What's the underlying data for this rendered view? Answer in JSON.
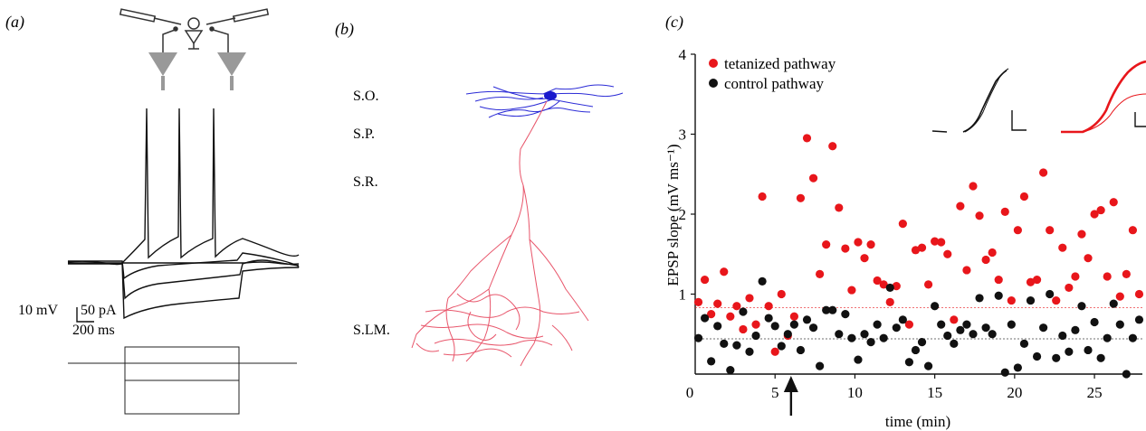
{
  "panel_labels": {
    "a": "(a)",
    "b": "(b)",
    "c": "(c)"
  },
  "panel_a": {
    "scale_voltage": "10 mV",
    "scale_current": "50 pA",
    "scale_time": "200 ms"
  },
  "panel_b": {
    "layers": [
      "S.O.",
      "S.P.",
      "S.R.",
      "S.LM."
    ],
    "colors": {
      "axon_basal": "#2b2bd6",
      "dendrite": "#e8566b"
    }
  },
  "chart_data": {
    "type": "scatter",
    "xlabel": "time (min)",
    "ylabel": "EPSP slope (mV ms⁻¹)",
    "xlim": [
      0,
      28
    ],
    "ylim": [
      0,
      4
    ],
    "xticks": [
      0,
      5,
      10,
      15,
      20,
      25
    ],
    "yticks": [
      1,
      2,
      3,
      4
    ],
    "legend_position": "top-left",
    "stimulus_arrow_time": 6,
    "baseline_lines": [
      {
        "series": "tetanized pathway",
        "y": 0.83,
        "style": "dotted"
      },
      {
        "series": "control pathway",
        "y": 0.44,
        "style": "dotted"
      }
    ],
    "series": [
      {
        "name": "tetanized pathway",
        "color": "#e8161b",
        "x": [
          0.2,
          0.6,
          1.0,
          1.4,
          1.8,
          2.2,
          2.6,
          3.0,
          3.4,
          3.8,
          4.2,
          4.6,
          5.0,
          5.4,
          5.8,
          6.2,
          6.6,
          7.0,
          7.4,
          7.8,
          8.2,
          8.6,
          9.0,
          9.4,
          9.8,
          10.2,
          10.6,
          11.0,
          11.4,
          11.8,
          12.2,
          12.6,
          13.0,
          13.4,
          13.8,
          14.2,
          14.6,
          15.0,
          15.4,
          15.8,
          16.2,
          16.6,
          17.0,
          17.4,
          17.8,
          18.2,
          18.6,
          19.0,
          19.4,
          19.8,
          20.2,
          20.6,
          21.0,
          21.4,
          21.8,
          22.2,
          22.6,
          23.0,
          23.4,
          23.8,
          24.2,
          24.6,
          25.0,
          25.4,
          25.8,
          26.2,
          26.6,
          27.0,
          27.4,
          27.8
        ],
        "y": [
          0.9,
          1.18,
          0.75,
          0.88,
          1.28,
          0.72,
          0.85,
          0.56,
          0.95,
          0.62,
          2.22,
          0.85,
          0.28,
          1.0,
          0.48,
          0.72,
          2.2,
          2.95,
          2.45,
          1.25,
          1.62,
          2.85,
          2.08,
          1.57,
          1.05,
          1.65,
          1.45,
          1.62,
          1.17,
          1.12,
          0.9,
          1.1,
          1.88,
          0.62,
          1.55,
          1.58,
          1.12,
          1.66,
          1.65,
          1.5,
          0.68,
          2.1,
          1.3,
          2.35,
          1.98,
          1.43,
          1.52,
          1.18,
          2.03,
          0.92,
          1.8,
          2.22,
          1.15,
          1.18,
          2.52,
          1.8,
          0.92,
          1.58,
          1.08,
          1.22,
          1.75,
          1.45,
          2.0,
          2.05,
          1.22,
          2.15,
          0.97,
          1.25,
          1.8,
          1.0
        ]
      },
      {
        "name": "control pathway",
        "color": "#111111",
        "x": [
          0.2,
          0.6,
          1.0,
          1.4,
          1.8,
          2.2,
          2.6,
          3.0,
          3.4,
          3.8,
          4.2,
          4.6,
          5.0,
          5.4,
          5.8,
          6.2,
          6.6,
          7.0,
          7.4,
          7.8,
          8.2,
          8.6,
          9.0,
          9.4,
          9.8,
          10.2,
          10.6,
          11.0,
          11.4,
          11.8,
          12.2,
          12.6,
          13.0,
          13.4,
          13.8,
          14.2,
          14.6,
          15.0,
          15.4,
          15.8,
          16.2,
          16.6,
          17.0,
          17.4,
          17.8,
          18.2,
          18.6,
          19.0,
          19.4,
          19.8,
          20.2,
          20.6,
          21.0,
          21.4,
          21.8,
          22.2,
          22.6,
          23.0,
          23.4,
          23.8,
          24.2,
          24.6,
          25.0,
          25.4,
          25.8,
          26.2,
          26.6,
          27.0,
          27.4,
          27.8
        ],
        "y": [
          0.45,
          0.7,
          0.16,
          0.6,
          0.38,
          0.05,
          0.36,
          0.78,
          0.28,
          0.48,
          1.16,
          0.7,
          0.6,
          0.35,
          0.5,
          0.62,
          0.3,
          0.68,
          0.58,
          0.1,
          0.8,
          0.8,
          0.5,
          0.75,
          0.45,
          0.18,
          0.5,
          0.4,
          0.62,
          0.45,
          1.08,
          0.58,
          0.68,
          0.15,
          0.3,
          0.4,
          0.1,
          0.85,
          0.62,
          0.48,
          0.38,
          0.55,
          0.62,
          0.5,
          0.95,
          0.58,
          0.5,
          0.98,
          0.02,
          0.62,
          0.08,
          0.38,
          0.92,
          0.22,
          0.58,
          1.0,
          0.2,
          0.48,
          0.28,
          0.55,
          0.85,
          0.3,
          0.65,
          0.2,
          0.45,
          0.88,
          0.62,
          0.0,
          0.45,
          0.68
        ]
      }
    ]
  }
}
